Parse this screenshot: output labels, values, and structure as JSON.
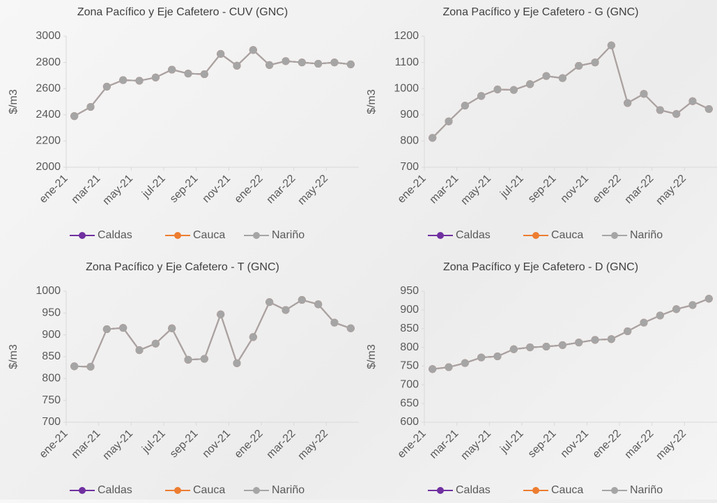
{
  "chart_data": [
    {
      "type": "line",
      "title": "Zona Pacífico y Eje Cafetero  - CUV (GNC)",
      "y_label": "$/m3",
      "categories": [
        "ene-21",
        null,
        "mar-21",
        null,
        "may-21",
        null,
        "jul-21",
        null,
        "sep-21",
        null,
        "nov-21",
        null,
        "ene-22",
        null,
        "mar-22",
        null,
        "may-22",
        null
      ],
      "series": [
        {
          "name": "Caldas",
          "color": "#7030a0",
          "values": [
            2390,
            2460,
            2615,
            2665,
            2660,
            2685,
            2745,
            2715,
            2710,
            2865,
            2775,
            2895,
            2780,
            2810,
            2800,
            2790,
            2800,
            2785
          ]
        },
        {
          "name": "Cauca",
          "color": "#ed7d31",
          "values": [
            2390,
            2460,
            2615,
            2665,
            2660,
            2685,
            2745,
            2715,
            2710,
            2865,
            2775,
            2895,
            2780,
            2810,
            2800,
            2790,
            2800,
            2785
          ]
        },
        {
          "name": "Nariño",
          "color": "#a5a5a5",
          "values": [
            2390,
            2460,
            2615,
            2665,
            2660,
            2685,
            2745,
            2715,
            2710,
            2865,
            2775,
            2895,
            2780,
            2810,
            2800,
            2790,
            2800,
            2785
          ]
        }
      ],
      "ylim": [
        2000,
        3000
      ],
      "yticks": [
        2000,
        2200,
        2400,
        2600,
        2800,
        3000
      ]
    },
    {
      "type": "line",
      "title": "Zona Pacífico y Eje Cafetero  - G (GNC)",
      "y_label": "$/m3",
      "categories": [
        "ene-21",
        null,
        "mar-21",
        null,
        "may-21",
        null,
        "jul-21",
        null,
        "sep-21",
        null,
        "nov-21",
        null,
        "ene-22",
        null,
        "mar-22",
        null,
        "may-22",
        null
      ],
      "series": [
        {
          "name": "Caldas",
          "color": "#7030a0",
          "values": [
            812,
            875,
            935,
            972,
            997,
            995,
            1017,
            1048,
            1040,
            1087,
            1100,
            1165,
            945,
            980,
            918,
            903,
            952,
            922
          ]
        },
        {
          "name": "Cauca",
          "color": "#ed7d31",
          "values": [
            812,
            875,
            935,
            972,
            997,
            995,
            1017,
            1048,
            1040,
            1087,
            1100,
            1165,
            945,
            980,
            918,
            903,
            952,
            922
          ]
        },
        {
          "name": "Nariño",
          "color": "#a5a5a5",
          "values": [
            812,
            875,
            935,
            972,
            997,
            995,
            1017,
            1048,
            1040,
            1087,
            1100,
            1165,
            945,
            980,
            918,
            903,
            952,
            922
          ]
        }
      ],
      "ylim": [
        700,
        1200
      ],
      "yticks": [
        700,
        800,
        900,
        1000,
        1100,
        1200
      ]
    },
    {
      "type": "line",
      "title": "Zona Pacífico y Eje Cafetero  - T (GNC)",
      "y_label": "$/m3",
      "categories": [
        "ene-21",
        null,
        "mar-21",
        null,
        "may-21",
        null,
        "jul-21",
        null,
        "sep-21",
        null,
        "nov-21",
        null,
        "ene-22",
        null,
        "mar-22",
        null,
        "may-22",
        null
      ],
      "series": [
        {
          "name": "Caldas",
          "color": "#7030a0",
          "values": [
            828,
            827,
            913,
            916,
            865,
            880,
            915,
            843,
            845,
            947,
            835,
            895,
            975,
            957,
            980,
            970,
            928,
            915
          ]
        },
        {
          "name": "Cauca",
          "color": "#ed7d31",
          "values": [
            828,
            827,
            913,
            916,
            865,
            880,
            915,
            843,
            845,
            947,
            835,
            895,
            975,
            957,
            980,
            970,
            928,
            915
          ]
        },
        {
          "name": "Nariño",
          "color": "#a5a5a5",
          "values": [
            828,
            827,
            913,
            916,
            865,
            880,
            915,
            843,
            845,
            947,
            835,
            895,
            975,
            957,
            980,
            970,
            928,
            915
          ]
        }
      ],
      "ylim": [
        700,
        1000
      ],
      "yticks": [
        700,
        750,
        800,
        850,
        900,
        950,
        1000
      ]
    },
    {
      "type": "line",
      "title": "Zona Pacífico y Eje Cafetero  - D (GNC)",
      "y_label": "$/m3",
      "categories": [
        "ene-21",
        null,
        "mar-21",
        null,
        "may-21",
        null,
        "jul-21",
        null,
        "sep-21",
        null,
        "nov-21",
        null,
        "ene-22",
        null,
        "mar-22",
        null,
        "may-22",
        null
      ],
      "series": [
        {
          "name": "Caldas",
          "color": "#7030a0",
          "values": [
            742,
            747,
            758,
            773,
            776,
            795,
            800,
            802,
            806,
            813,
            820,
            822,
            843,
            866,
            885,
            902,
            913,
            930
          ]
        },
        {
          "name": "Cauca",
          "color": "#ed7d31",
          "values": [
            742,
            747,
            758,
            773,
            776,
            795,
            800,
            802,
            806,
            813,
            820,
            822,
            843,
            866,
            885,
            902,
            913,
            930
          ]
        },
        {
          "name": "Nariño",
          "color": "#a5a5a5",
          "values": [
            742,
            747,
            758,
            773,
            776,
            795,
            800,
            802,
            806,
            813,
            820,
            822,
            843,
            866,
            885,
            902,
            913,
            930
          ]
        }
      ],
      "ylim": [
        600,
        950
      ],
      "yticks": [
        600,
        650,
        700,
        750,
        800,
        850,
        900,
        950
      ]
    }
  ]
}
